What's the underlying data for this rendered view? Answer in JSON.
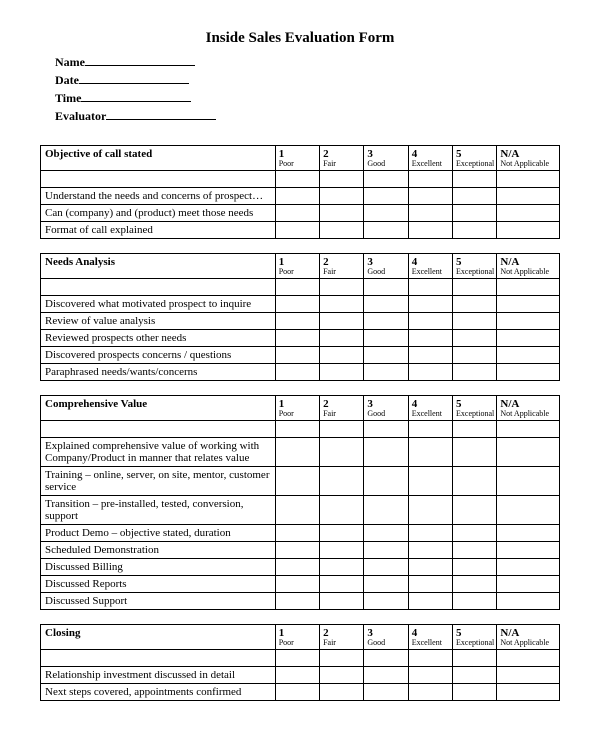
{
  "title": "Inside Sales Evaluation Form",
  "fields": {
    "name": "Name",
    "date": "Date",
    "time": "Time",
    "evaluator": "Evaluator"
  },
  "ratings": [
    {
      "num": "1",
      "label": "Poor"
    },
    {
      "num": "2",
      "label": "Fair"
    },
    {
      "num": "3",
      "label": "Good"
    },
    {
      "num": "4",
      "label": "Excellent"
    },
    {
      "num": "5",
      "label": "Exceptional"
    }
  ],
  "na": {
    "head": "N/A",
    "sub": "Not Applicable"
  },
  "sections": [
    {
      "title": "Objective of call stated",
      "rows": [
        "Understand the needs and concerns of prospect…",
        "Can (company) and (product) meet those needs",
        "Format of call explained"
      ]
    },
    {
      "title": "Needs Analysis",
      "rows": [
        "Discovered what motivated prospect to inquire",
        "Review of value analysis",
        "Reviewed prospects other needs",
        "Discovered prospects concerns / questions",
        "Paraphrased needs/wants/concerns"
      ]
    },
    {
      "title": "Comprehensive Value",
      "rows": [
        "Explained comprehensive value of working with Company/Product in manner that relates value",
        "Training – online, server, on site, mentor, customer service",
        "Transition – pre-installed, tested, conversion, support",
        "Product Demo – objective stated, duration",
        "Scheduled Demonstration",
        "Discussed Billing",
        "Discussed Reports",
        "Discussed Support"
      ]
    },
    {
      "title": "Closing",
      "rows": [
        "Relationship investment discussed in detail",
        "Next steps covered, appointments confirmed"
      ]
    }
  ]
}
